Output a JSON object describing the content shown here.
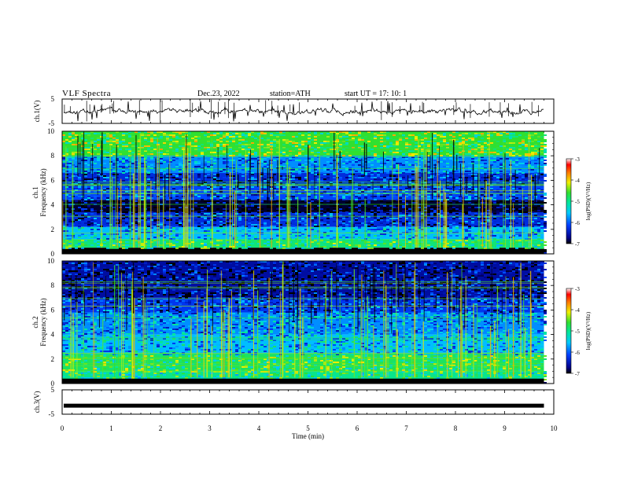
{
  "header": {
    "title": "VLF  Spectra",
    "date": "Dec.23, 2022",
    "station": "station=ATH",
    "start": "start  UT  =    17: 10: 1"
  },
  "colorbar": {
    "label": "log(PSD)(V²/Hz)",
    "ticks": [
      "-3",
      "-4",
      "-5",
      "-6",
      "-7"
    ],
    "range": [
      -7,
      -3
    ]
  },
  "chart_data": [
    {
      "type": "line",
      "panel": "ch1-waveform",
      "ylabel": "ch.1(V)",
      "ylim": [
        -5,
        5
      ],
      "yticks": [
        "5",
        "-5"
      ],
      "xlim": [
        0,
        10
      ],
      "baseline_value": 0,
      "series_end_min": 9.8
    },
    {
      "type": "heatmap",
      "panel": "ch1-spectrogram",
      "channel_label": "ch.1",
      "ylabel": "Frequency  (kHz)",
      "ylim": [
        0,
        10
      ],
      "yticks": [
        "0",
        "2",
        "4",
        "6",
        "8",
        "10"
      ],
      "xlim": [
        0,
        10
      ],
      "data_end_min": 9.8,
      "bands_khz": [
        {
          "from": 8.0,
          "to": 10.0,
          "level": -4.6
        },
        {
          "from": 6.6,
          "to": 8.0,
          "level": -5.8
        },
        {
          "from": 5.6,
          "to": 6.6,
          "level": -6.3
        },
        {
          "from": 4.4,
          "to": 5.6,
          "level": -6.1
        },
        {
          "from": 3.4,
          "to": 4.4,
          "level": -6.9
        },
        {
          "from": 2.2,
          "to": 3.4,
          "level": -6.3
        },
        {
          "from": 1.2,
          "to": 2.2,
          "level": -5.6
        },
        {
          "from": 0.5,
          "to": 1.2,
          "level": -4.9
        },
        {
          "from": 0.0,
          "to": 0.5,
          "level": -7.0
        }
      ]
    },
    {
      "type": "heatmap",
      "panel": "ch2-spectrogram",
      "channel_label": "ch.2",
      "ylabel": "Frequency  (kHz)",
      "ylim": [
        0,
        10
      ],
      "yticks": [
        "0",
        "2",
        "4",
        "6",
        "8",
        "10"
      ],
      "xlim": [
        0,
        10
      ],
      "data_end_min": 9.8,
      "bands_khz": [
        {
          "from": 7.0,
          "to": 10.0,
          "level": -6.6
        },
        {
          "from": 5.8,
          "to": 7.0,
          "level": -6.2
        },
        {
          "from": 4.0,
          "to": 5.8,
          "level": -5.8
        },
        {
          "from": 2.4,
          "to": 4.0,
          "level": -5.6
        },
        {
          "from": 1.0,
          "to": 2.4,
          "level": -4.8
        },
        {
          "from": 0.3,
          "to": 1.0,
          "level": -5.0
        },
        {
          "from": 0.0,
          "to": 0.3,
          "level": -7.0
        }
      ]
    },
    {
      "type": "line",
      "panel": "ch3-waveform",
      "ylabel": "ch.3(V)",
      "ylim": [
        -5,
        5
      ],
      "yticks": [
        "5",
        "-5"
      ],
      "xlim": [
        0,
        10
      ],
      "xticks": [
        "0",
        "1",
        "2",
        "3",
        "4",
        "5",
        "6",
        "7",
        "8",
        "9",
        "10"
      ],
      "xlabel": "Time  (min)",
      "baseline_value": -1.5,
      "series_end_min": 9.8
    }
  ]
}
